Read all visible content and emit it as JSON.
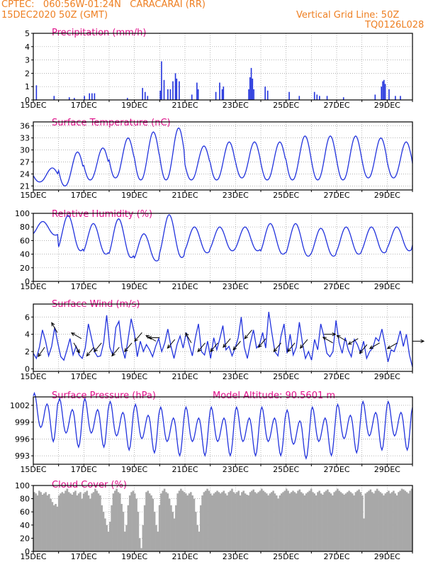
{
  "header": {
    "line1": "CPTEC:   060:56W-01:24N   CARACARAI (RR)",
    "line2": "15DEC2020 50Z (GMT)",
    "grid_note": "Vertical Grid Line: 50Z",
    "code": "TQ0126L028"
  },
  "colors": {
    "header": "#ee7f22",
    "title": "#e0108a",
    "series": "#2233dd",
    "cloud": "#a8a8a8",
    "wind_arrow": "#000000"
  },
  "chart_data": [
    {
      "type": "bar",
      "title": "Precipitation (mm/h)",
      "x_tick_labels": [
        "15DEC",
        "17DEC",
        "19DEC",
        "21DEC",
        "23DEC",
        "25DEC",
        "27DEC",
        "29DEC"
      ],
      "x_range_days": [
        15,
        30
      ],
      "ylim": [
        0,
        5
      ],
      "yticks": [
        "0",
        "1",
        "2",
        "3",
        "4",
        "5"
      ],
      "grid": "dotted",
      "bars": [
        {
          "d": 15.1,
          "v": 1.1
        },
        {
          "d": 15.8,
          "v": 0.3
        },
        {
          "d": 16.4,
          "v": 0.2
        },
        {
          "d": 16.6,
          "v": 0.15
        },
        {
          "d": 17.0,
          "v": 0.3
        },
        {
          "d": 17.2,
          "v": 0.5
        },
        {
          "d": 17.3,
          "v": 0.5
        },
        {
          "d": 17.4,
          "v": 0.5
        },
        {
          "d": 18.7,
          "v": 0.15
        },
        {
          "d": 19.3,
          "v": 0.9
        },
        {
          "d": 19.4,
          "v": 0.6
        },
        {
          "d": 19.5,
          "v": 0.3
        },
        {
          "d": 20.0,
          "v": 0.7
        },
        {
          "d": 20.05,
          "v": 2.9
        },
        {
          "d": 20.15,
          "v": 1.5
        },
        {
          "d": 20.3,
          "v": 0.8
        },
        {
          "d": 20.4,
          "v": 0.8
        },
        {
          "d": 20.5,
          "v": 1.4
        },
        {
          "d": 20.6,
          "v": 2.0
        },
        {
          "d": 20.65,
          "v": 1.6
        },
        {
          "d": 20.75,
          "v": 1.4
        },
        {
          "d": 21.25,
          "v": 0.4
        },
        {
          "d": 21.45,
          "v": 1.3
        },
        {
          "d": 21.5,
          "v": 0.8
        },
        {
          "d": 22.2,
          "v": 0.6
        },
        {
          "d": 22.35,
          "v": 1.3
        },
        {
          "d": 22.45,
          "v": 0.8
        },
        {
          "d": 22.5,
          "v": 1.0
        },
        {
          "d": 23.5,
          "v": 0.8
        },
        {
          "d": 23.55,
          "v": 1.7
        },
        {
          "d": 23.6,
          "v": 2.4
        },
        {
          "d": 23.65,
          "v": 1.6
        },
        {
          "d": 23.7,
          "v": 0.8
        },
        {
          "d": 24.15,
          "v": 1.0
        },
        {
          "d": 24.25,
          "v": 0.7
        },
        {
          "d": 25.1,
          "v": 0.6
        },
        {
          "d": 25.5,
          "v": 0.3
        },
        {
          "d": 26.1,
          "v": 0.6
        },
        {
          "d": 26.2,
          "v": 0.4
        },
        {
          "d": 26.3,
          "v": 0.3
        },
        {
          "d": 26.6,
          "v": 0.3
        },
        {
          "d": 27.25,
          "v": 0.2
        },
        {
          "d": 28.5,
          "v": 0.4
        },
        {
          "d": 28.75,
          "v": 1.0
        },
        {
          "d": 28.8,
          "v": 1.4
        },
        {
          "d": 28.85,
          "v": 1.5
        },
        {
          "d": 28.9,
          "v": 1.2
        },
        {
          "d": 29.05,
          "v": 0.8
        },
        {
          "d": 29.3,
          "v": 0.3
        },
        {
          "d": 29.5,
          "v": 0.3
        }
      ]
    },
    {
      "type": "line",
      "title": "Surface Temperature (nC)",
      "x_tick_labels": [
        "15DEC",
        "17DEC",
        "19DEC",
        "21DEC",
        "23DEC",
        "25DEC",
        "27DEC",
        "29DEC"
      ],
      "x_range_days": [
        15,
        30
      ],
      "ylim": [
        20,
        37
      ],
      "yticks": [
        21,
        24,
        27,
        30,
        33,
        36
      ],
      "grid": "dotted",
      "day_min": [
        22,
        21,
        22.5,
        23,
        22.5,
        22.5,
        22.5,
        22.5,
        23,
        22.5,
        22.5,
        22.5,
        22.5,
        23,
        23,
        23
      ],
      "day_max": [
        25.5,
        29.5,
        30.5,
        33,
        34.5,
        35.5,
        31,
        32,
        32,
        32,
        33.5,
        33.5,
        33.5,
        33,
        32,
        31
      ],
      "series": [
        {
          "values": []
        }
      ]
    },
    {
      "type": "line",
      "title": "Relative Humidity (%)",
      "x_tick_labels": [
        "15DEC",
        "17DEC",
        "19DEC",
        "21DEC",
        "23DEC",
        "25DEC",
        "27DEC",
        "29DEC"
      ],
      "x_range_days": [
        15,
        30
      ],
      "ylim": [
        0,
        100
      ],
      "yticks": [
        0,
        20,
        40,
        60,
        80,
        100
      ],
      "grid": "dotted",
      "day_min": [
        68,
        45,
        40,
        35,
        30,
        35,
        42,
        45,
        45,
        40,
        37,
        37,
        40,
        42,
        45,
        50
      ],
      "day_max": [
        88,
        97,
        85,
        92,
        70,
        98,
        80,
        80,
        80,
        85,
        85,
        78,
        80,
        80,
        80,
        80
      ],
      "series": [
        {
          "values": []
        }
      ]
    },
    {
      "type": "line",
      "title": "Surface Wind (m/s)",
      "x_tick_labels": [
        "15DEC",
        "17DEC",
        "19DEC",
        "21DEC",
        "23DEC",
        "25DEC",
        "27DEC",
        "29DEC"
      ],
      "x_range_days": [
        15,
        30
      ],
      "ylim": [
        -0.3,
        7.5
      ],
      "yticks": [
        0,
        2,
        4,
        6
      ],
      "grid": "dotted",
      "speed": [
        1.8,
        1.2,
        2.5,
        4.5,
        3.2,
        1.5,
        2.6,
        4.8,
        3.0,
        1.4,
        1.0,
        2.2,
        3.5,
        1.6,
        2.6,
        1.6,
        1.2,
        2.4,
        5.2,
        3.6,
        2.0,
        1.4,
        1.5,
        3.0,
        6.2,
        2.5,
        1.6,
        4.8,
        5.5,
        2.5,
        1.2,
        3.5,
        5.8,
        4.2,
        1.4,
        3.2,
        2.0,
        2.8,
        2.2,
        1.4,
        2.6,
        3.5,
        2.0,
        3.0,
        4.6,
        2.6,
        1.2,
        2.8,
        3.8,
        2.4,
        4.2,
        2.8,
        1.5,
        3.6,
        5.2,
        2.0,
        1.6,
        3.2,
        1.2,
        3.6,
        2.2,
        3.5,
        5.0,
        2.2,
        2.6,
        1.5,
        2.4,
        3.6,
        6.0,
        2.5,
        1.2,
        3.0,
        4.5,
        2.4,
        2.8,
        4.2,
        2.4,
        6.6,
        4.2,
        2.0,
        1.5,
        3.8,
        5.2,
        1.8,
        4.0,
        1.6,
        2.5,
        5.4,
        3.0,
        1.2,
        2.0,
        1.0,
        3.4,
        2.2,
        5.2,
        3.8,
        1.8,
        1.4,
        2.0,
        5.6,
        3.0,
        1.8,
        3.6,
        2.2,
        1.4,
        3.4,
        2.8,
        1.8,
        3.2,
        1.2,
        2.0,
        2.4,
        3.6,
        3.2,
        4.6,
        2.8,
        0.8,
        2.2,
        2.0,
        3.0,
        4.4,
        2.6,
        4.0,
        1.6,
        0.2
      ],
      "arrows": [
        {
          "d": 15.45,
          "s": 2.5,
          "ang": 235
        },
        {
          "d": 15.95,
          "s": 4.2,
          "ang": 120
        },
        {
          "d": 16.6,
          "s": 3.0,
          "ang": 300
        },
        {
          "d": 16.9,
          "s": 3.5,
          "ang": 150
        },
        {
          "d": 17.4,
          "s": 2.5,
          "ang": 230
        },
        {
          "d": 17.7,
          "s": 3.0,
          "ang": 230
        },
        {
          "d": 18.4,
          "s": 2.5,
          "ang": 230
        },
        {
          "d": 18.9,
          "s": 3.0,
          "ang": 230
        },
        {
          "d": 19.3,
          "s": 4.2,
          "ang": 230
        },
        {
          "d": 19.85,
          "s": 3.2,
          "ang": 150
        },
        {
          "d": 20.0,
          "s": 3.6,
          "ang": 180
        },
        {
          "d": 20.6,
          "s": 3.4,
          "ang": 230
        },
        {
          "d": 21.25,
          "s": 3.0,
          "ang": 120
        },
        {
          "d": 21.8,
          "s": 3.0,
          "ang": 230
        },
        {
          "d": 22.3,
          "s": 3.0,
          "ang": 230
        },
        {
          "d": 22.8,
          "s": 3.5,
          "ang": 230
        },
        {
          "d": 23.2,
          "s": 3.2,
          "ang": 230
        },
        {
          "d": 23.65,
          "s": 4.5,
          "ang": 230
        },
        {
          "d": 24.2,
          "s": 3.5,
          "ang": 230
        },
        {
          "d": 24.8,
          "s": 3.0,
          "ang": 230
        },
        {
          "d": 25.35,
          "s": 3.0,
          "ang": 230
        },
        {
          "d": 25.85,
          "s": 3.4,
          "ang": 230
        },
        {
          "d": 26.5,
          "s": 4.0,
          "ang": 0
        },
        {
          "d": 26.85,
          "s": 3.0,
          "ang": 150
        },
        {
          "d": 27.4,
          "s": 3.2,
          "ang": 150
        },
        {
          "d": 27.85,
          "s": 3.5,
          "ang": 210
        },
        {
          "d": 28.2,
          "s": 2.8,
          "ang": 230
        },
        {
          "d": 28.7,
          "s": 3.0,
          "ang": 210
        },
        {
          "d": 29.4,
          "s": 3.0,
          "ang": 210
        },
        {
          "d": 30.0,
          "s": 3.2,
          "ang": 0
        }
      ]
    },
    {
      "type": "line",
      "title": "Surface Pressure (hPa)",
      "annotation": "Model Altitude: 90.5601  m",
      "x_tick_labels": [
        "15DEC",
        "17DEC",
        "19DEC",
        "21DEC",
        "23DEC",
        "25DEC",
        "27DEC",
        "29DEC"
      ],
      "x_range_days": [
        15,
        30
      ],
      "ylim": [
        991.5,
        1003.5
      ],
      "yticks": [
        993,
        996,
        999,
        1002
      ],
      "grid": "dotted",
      "day_mean": [
        1000,
        999,
        999,
        998.5,
        998,
        997.5,
        997.5,
        997.5,
        997.5,
        997.5,
        997,
        997.5,
        998,
        998.5,
        998.5,
        998
      ]
    },
    {
      "type": "bar",
      "title": "Cloud Cover (%)",
      "x_tick_labels": [
        "15DEC",
        "17DEC",
        "19DEC",
        "21DEC",
        "23DEC",
        "25DEC",
        "27DEC",
        "29DEC"
      ],
      "x_range_days": [
        15,
        30
      ],
      "ylim": [
        0,
        100
      ],
      "yticks": [
        0,
        20,
        40,
        60,
        80,
        100
      ],
      "grid": "dotted",
      "values": [
        90,
        88,
        85,
        92,
        90,
        86,
        88,
        90,
        85,
        87,
        80,
        75,
        70,
        72,
        68,
        85,
        88,
        90,
        88,
        92,
        95,
        90,
        88,
        86,
        90,
        92,
        85,
        88,
        90,
        80,
        88,
        90,
        92,
        85,
        80,
        88,
        90,
        95,
        92,
        88,
        85,
        70,
        60,
        50,
        40,
        30,
        45,
        70,
        88,
        92,
        95,
        90,
        88,
        72,
        60,
        30,
        40,
        70,
        85,
        90,
        92,
        88,
        80,
        60,
        20,
        5,
        40,
        70,
        90,
        92,
        88,
        85,
        80,
        60,
        40,
        30,
        70,
        88,
        92,
        95,
        90,
        88,
        80,
        70,
        60,
        50,
        70,
        88,
        92,
        95,
        92,
        90,
        88,
        85,
        88,
        90,
        85,
        80,
        60,
        40,
        30,
        70,
        85,
        90,
        92,
        95,
        92,
        88,
        85,
        88,
        90,
        92,
        90,
        88,
        90,
        92,
        88,
        85,
        90,
        92,
        95,
        90,
        88,
        90,
        92,
        85,
        90,
        92,
        88,
        86,
        85,
        90,
        92,
        94,
        90,
        88,
        90,
        92,
        95,
        92,
        90,
        88,
        85,
        88,
        90,
        92,
        88,
        85,
        80,
        85,
        88,
        90,
        92,
        95,
        92,
        88,
        90,
        92,
        90,
        88,
        92,
        94,
        90,
        88,
        85,
        88,
        90,
        92,
        95,
        90,
        88,
        85,
        90,
        92,
        88,
        86,
        90,
        92,
        94,
        90,
        88,
        85,
        90,
        92,
        95,
        92,
        90,
        88,
        86,
        88,
        90,
        92,
        90,
        88,
        85,
        90,
        92,
        94,
        90,
        85,
        50,
        88,
        90,
        92,
        94,
        90,
        88,
        92,
        95,
        92,
        90,
        88,
        85,
        88,
        90,
        92,
        88,
        90,
        92,
        88,
        85,
        90,
        92,
        95,
        94,
        92,
        90,
        88,
        92,
        95
      ]
    }
  ]
}
